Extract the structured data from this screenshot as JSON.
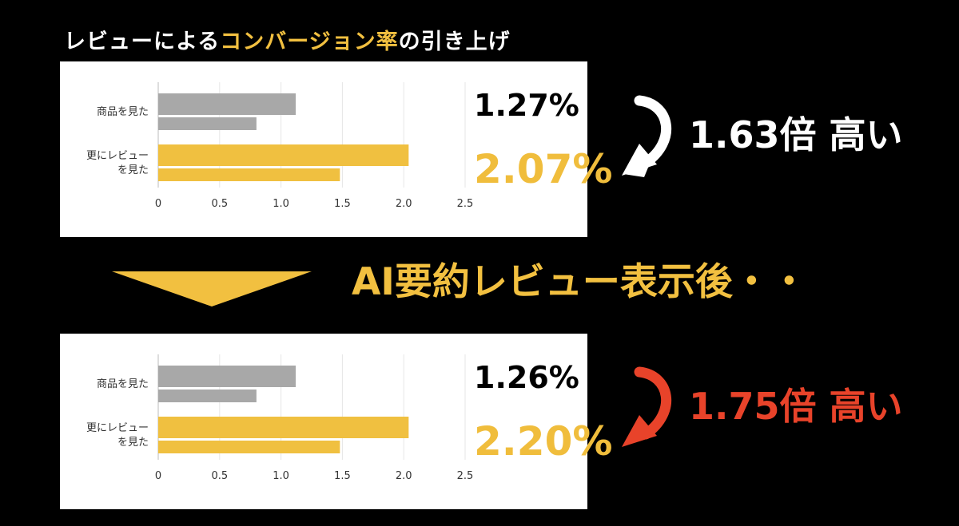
{
  "headline": {
    "prefix": "レビューによる",
    "highlight": "コンバージョン率",
    "suffix": "の引き上げ"
  },
  "subhead": "AI要約レビュー表示後・・",
  "colors": {
    "background": "#000000",
    "accent_yellow": "#f2c040",
    "bar_gray": "#a8a8a8",
    "bar_yellow": "#f0c040",
    "multiplier_red": "#e8432a",
    "arrow_white": "#ffffff",
    "arrow_red": "#e8432a"
  },
  "icons": {
    "top_arrow": "curved-arrow-down-left-icon",
    "bottom_arrow": "curved-arrow-down-left-icon",
    "divider": "triangle-down-icon"
  },
  "chart_data": [
    {
      "type": "bar",
      "orientation": "horizontal",
      "categories": [
        "商品を見た",
        "更にレビュー\nを見た"
      ],
      "category_lines": [
        [
          "商品を見た"
        ],
        [
          "更にレビュー",
          "を見た"
        ]
      ],
      "series": [
        {
          "values": [
            1.12,
            2.04
          ]
        },
        {
          "values": [
            0.8,
            1.48
          ]
        }
      ],
      "xlim": [
        0,
        2.5
      ],
      "xticks": [
        "0",
        "0.5",
        "1.0",
        "1.5",
        "2.0",
        "2.5"
      ],
      "grid": true,
      "annotations": {
        "before_pct": "1.27%",
        "after_pct": "2.07%",
        "multiplier": "1.63倍 高い"
      }
    },
    {
      "type": "bar",
      "orientation": "horizontal",
      "categories": [
        "商品を見た",
        "更にレビュー\nを見た"
      ],
      "category_lines": [
        [
          "商品を見た"
        ],
        [
          "更にレビュー",
          "を見た"
        ]
      ],
      "series": [
        {
          "values": [
            1.12,
            2.04
          ]
        },
        {
          "values": [
            0.8,
            1.48
          ]
        }
      ],
      "xlim": [
        0,
        2.5
      ],
      "xticks": [
        "0",
        "0.5",
        "1.0",
        "1.5",
        "2.0",
        "2.5"
      ],
      "grid": true,
      "annotations": {
        "before_pct": "1.26%",
        "after_pct": "2.20%",
        "multiplier": "1.75倍 高い"
      }
    }
  ]
}
